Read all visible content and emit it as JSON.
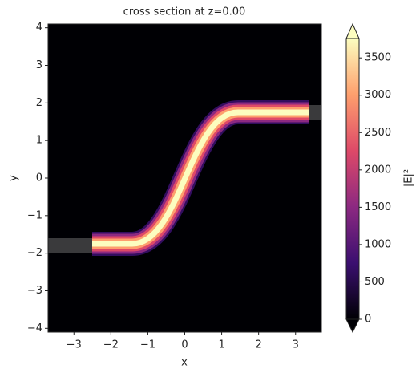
{
  "chart_data": {
    "type": "heatmap",
    "title": "cross section at z=0.00",
    "x_label": "x",
    "y_label": "y",
    "xlim": [
      -3.7,
      3.7
    ],
    "ylim": [
      -4.1,
      4.1
    ],
    "xticks": [
      {
        "value": -3,
        "label": "−3"
      },
      {
        "value": -2,
        "label": "−2"
      },
      {
        "value": -1,
        "label": "−1"
      },
      0,
      1,
      2,
      3
    ],
    "yticks": [
      {
        "value": -4,
        "label": "−4"
      },
      {
        "value": -3,
        "label": "−3"
      },
      {
        "value": -2,
        "label": "−2"
      },
      {
        "value": -1,
        "label": "−1"
      },
      0,
      1,
      2,
      3,
      4
    ],
    "colorbar": {
      "label": "|E|²",
      "lim": [
        0,
        3760
      ],
      "ticks": [
        0,
        500,
        1000,
        1500,
        2000,
        2500,
        3000,
        3500
      ],
      "colors": [
        "#000004",
        "#3b0f70",
        "#8c2981",
        "#de4968",
        "#fe9f6d",
        "#fcfdbf"
      ]
    }
  }
}
